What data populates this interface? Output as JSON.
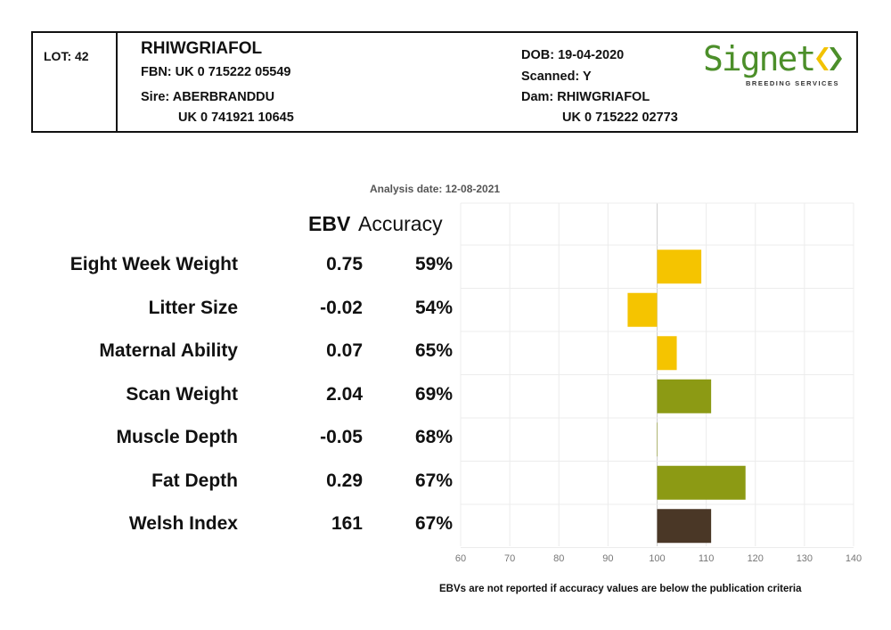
{
  "header": {
    "lot": "LOT: 42",
    "name": "RHIWGRIAFOL",
    "fbn": "FBN: UK 0 715222 05549",
    "sire_label": "Sire: ABERBRANDDU",
    "sire_id": "UK 0 741921 10645",
    "dob": "DOB: 19-04-2020",
    "scanned": "Scanned: Y",
    "dam_label": "Dam: RHIWGRIAFOL",
    "dam_id": "UK 0 715222 02773"
  },
  "logo": {
    "word": "Signet",
    "tagline": "BREEDING SERVICES",
    "colors": {
      "word": "#4c8f2a",
      "left_mark": "#f2c200",
      "right_mark": "#4c8f2a"
    }
  },
  "analysis_date": "Analysis date: 12-08-2021",
  "columns": {
    "ebv": "EBV",
    "accuracy": "Accuracy"
  },
  "footnote": "EBVs are not reported if accuracy values are below the publication criteria",
  "chart_data": {
    "type": "bar",
    "orientation": "horizontal",
    "baseline": 100,
    "xlim": [
      60,
      140
    ],
    "xticks": [
      "60",
      "70",
      "80",
      "90",
      "100",
      "110",
      "120",
      "130",
      "140"
    ],
    "grid": true,
    "categories": [
      "Eight Week Weight",
      "Litter Size",
      "Maternal Ability",
      "Scan Weight",
      "Muscle Depth",
      "Fat Depth",
      "Welsh Index"
    ],
    "ebv_labels": [
      "0.75",
      "-0.02",
      "0.07",
      "2.04",
      "-0.05",
      "0.29",
      "161"
    ],
    "accuracy_labels": [
      "59%",
      "54%",
      "65%",
      "69%",
      "68%",
      "67%",
      "67%"
    ],
    "values": [
      109,
      94,
      104,
      111,
      100,
      118,
      111
    ],
    "bar_colors": [
      "#f5c400",
      "#f5c400",
      "#f5c400",
      "#8c9a14",
      "#8c9a14",
      "#8c9a14",
      "#4a3726"
    ]
  }
}
